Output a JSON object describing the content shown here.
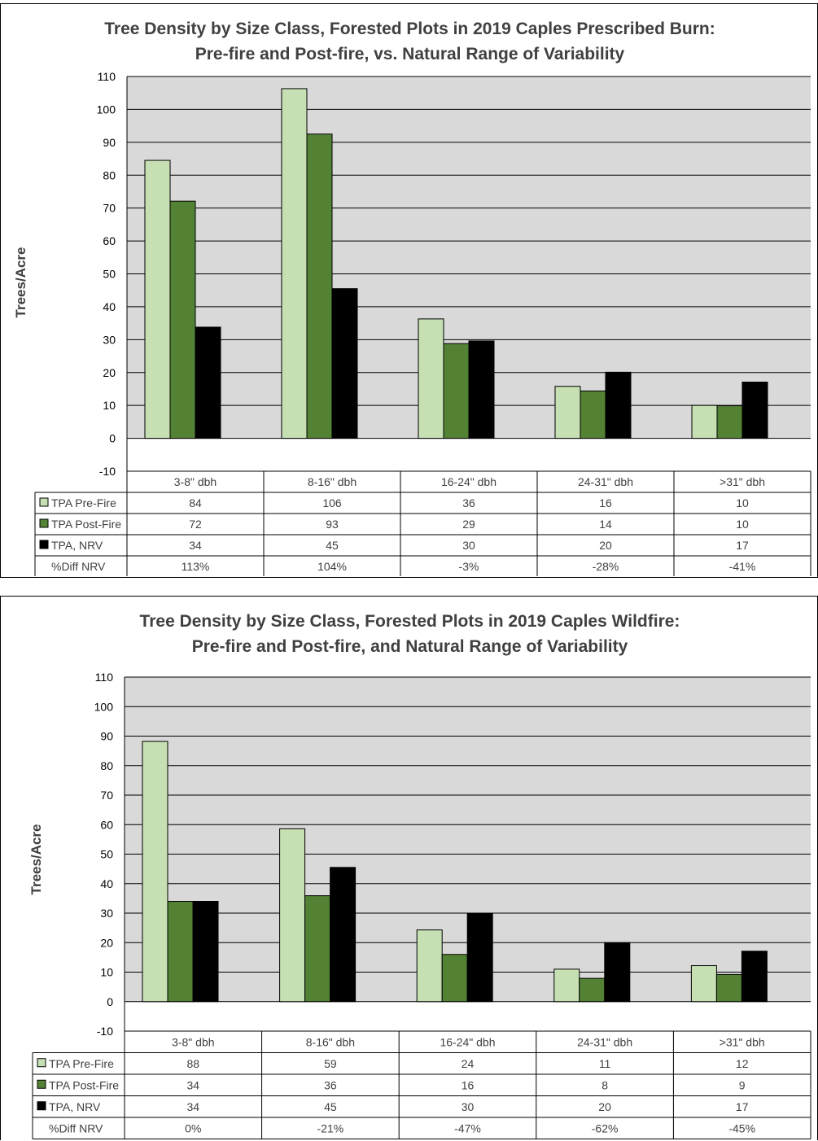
{
  "chart_data": [
    {
      "type": "bar",
      "title": "Tree Density by Size Class, Forested Plots in 2019 Caples Prescribed Burn:",
      "subtitle": "Pre-fire and Post-fire, vs. Natural Range of Variability",
      "ylabel": "Trees/Acre",
      "xlabel": "",
      "ylim": [
        -10,
        110
      ],
      "yticks": [
        "-10",
        "0",
        "10",
        "20",
        "30",
        "40",
        "50",
        "60",
        "70",
        "80",
        "90",
        "100",
        "110"
      ],
      "grid": true,
      "legend": "data-table",
      "categories": [
        "3-8\" dbh",
        "8-16\" dbh",
        "16-24\" dbh",
        "24-31\" dbh",
        ">31\" dbh"
      ],
      "series": [
        {
          "name": "TPA Pre-Fire",
          "color": "#c6e0b4",
          "values": [
            84,
            106,
            36,
            16,
            10
          ],
          "labels": [
            "84",
            "106",
            "36",
            "16",
            "10"
          ],
          "plotted": [
            84.5,
            106.3,
            36.3,
            15.8,
            10
          ]
        },
        {
          "name": "TPA Post-Fire",
          "color": "#548235",
          "values": [
            72,
            93,
            29,
            14,
            10
          ],
          "labels": [
            "72",
            "93",
            "29",
            "14",
            "10"
          ],
          "plotted": [
            72.1,
            92.5,
            28.8,
            14.4,
            9.9
          ]
        },
        {
          "name": "TPA, NRV",
          "color": "#000000",
          "values": [
            34,
            45,
            30,
            20,
            17
          ],
          "labels": [
            "34",
            "45",
            "30",
            "20",
            "17"
          ],
          "plotted": [
            33.8,
            45.5,
            29.6,
            20.1,
            17.1
          ]
        }
      ],
      "table_extra_row": {
        "name": "%Diff NRV",
        "labels": [
          "113%",
          "104%",
          "-3%",
          "-28%",
          "-41%"
        ]
      }
    },
    {
      "type": "bar",
      "title": "Tree Density by Size Class, Forested Plots in 2019 Caples Wildfire:",
      "subtitle": "Pre-fire and Post-fire, and Natural Range of Variability",
      "ylabel": "Trees/Acre",
      "xlabel": "",
      "ylim": [
        -10,
        110
      ],
      "yticks": [
        "-10",
        "0",
        "10",
        "20",
        "30",
        "40",
        "50",
        "60",
        "70",
        "80",
        "90",
        "100",
        "110"
      ],
      "grid": true,
      "legend": "data-table",
      "categories": [
        "3-8\" dbh",
        "8-16\" dbh",
        "16-24\" dbh",
        "24-31\" dbh",
        ">31\" dbh"
      ],
      "series": [
        {
          "name": "TPA Pre-Fire",
          "color": "#c6e0b4",
          "values": [
            88,
            59,
            24,
            11,
            12
          ],
          "labels": [
            "88",
            "59",
            "24",
            "11",
            "12"
          ],
          "plotted": [
            88.2,
            58.6,
            24.3,
            11,
            12.2
          ]
        },
        {
          "name": "TPA Post-Fire",
          "color": "#548235",
          "values": [
            34,
            36,
            16,
            8,
            9
          ],
          "labels": [
            "34",
            "36",
            "16",
            "8",
            "9"
          ],
          "plotted": [
            34,
            35.9,
            16,
            7.9,
            9.2
          ]
        },
        {
          "name": "TPA, NRV",
          "color": "#000000",
          "values": [
            34,
            45,
            30,
            20,
            17
          ],
          "labels": [
            "34",
            "45",
            "30",
            "20",
            "17"
          ],
          "plotted": [
            34,
            45.5,
            29.9,
            20,
            17.1
          ]
        }
      ],
      "table_extra_row": {
        "name": "%Diff NRV",
        "labels": [
          "0%",
          "-21%",
          "-47%",
          "-62%",
          "-45%"
        ]
      }
    }
  ]
}
